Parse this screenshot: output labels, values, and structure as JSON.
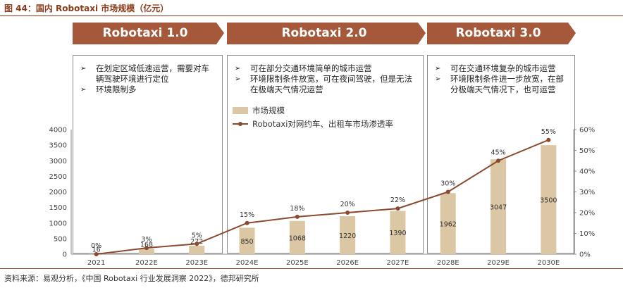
{
  "figure": {
    "title": "图 44：国内 Robotaxi 市场规模（亿元）",
    "source": "资料来源：易观分析，《中国 Robotaxi 行业发展洞察 2022》，德邦研究所"
  },
  "phases": [
    {
      "label": "Robotaxi 1.0",
      "bullets": [
        "在划定区域低速运营，需要对车辆驾驶环境进行定位",
        "环境限制多"
      ]
    },
    {
      "label": "Robotaxi 2.0",
      "bullets": [
        "可在部分交通环境简单的城市运营",
        "环境限制条件放宽，可在夜间驾驶，但是无法在极端天气情况运营"
      ]
    },
    {
      "label": "Robotaxi 3.0",
      "bullets": [
        "可在交通环境复杂的城市运营",
        "环境限制条件进一步放宽，在部分极端天气情况下，也可运营"
      ]
    }
  ],
  "colors": {
    "bar": "#dcc7a4",
    "line": "#8b4a30",
    "banner": "#a5583a",
    "axis": "#8c8c8c",
    "title": "#8a3c1a"
  },
  "chart_data": {
    "type": "bar",
    "categories": [
      "2021",
      "2022E",
      "2023E",
      "2024E",
      "2025E",
      "2026E",
      "2027E",
      "2028E",
      "2029E",
      "2030E"
    ],
    "series": [
      {
        "name": "市场规模",
        "type": "bar",
        "axis": "left",
        "values": [
          16,
          168,
          272,
          850,
          1068,
          1220,
          1390,
          1962,
          3047,
          3500
        ],
        "labels": [
          "16",
          "168",
          "272",
          "850",
          "1068",
          "1220",
          "1390",
          "1962",
          "3047",
          "3500"
        ]
      },
      {
        "name": "Robotaxi对网约车、出租车市场渗透率",
        "type": "line",
        "axis": "right",
        "values": [
          0,
          3,
          5,
          15,
          18,
          20,
          22,
          30,
          45,
          55
        ],
        "labels": [
          "0%",
          "3%",
          "5%",
          "15%",
          "18%",
          "20%",
          "22%",
          "30%",
          "45%",
          "55%"
        ]
      }
    ],
    "y_left": {
      "min": 0,
      "max": 4000,
      "ticks": [
        "0",
        "500",
        "1000",
        "1500",
        "2000",
        "2500",
        "3000",
        "3500",
        "4000"
      ]
    },
    "y_right": {
      "min": 0,
      "max": 60,
      "ticks": [
        "0%",
        "10%",
        "20%",
        "30%",
        "40%",
        "50%",
        "60%"
      ]
    },
    "grid": false,
    "legend_position": "top-center"
  }
}
